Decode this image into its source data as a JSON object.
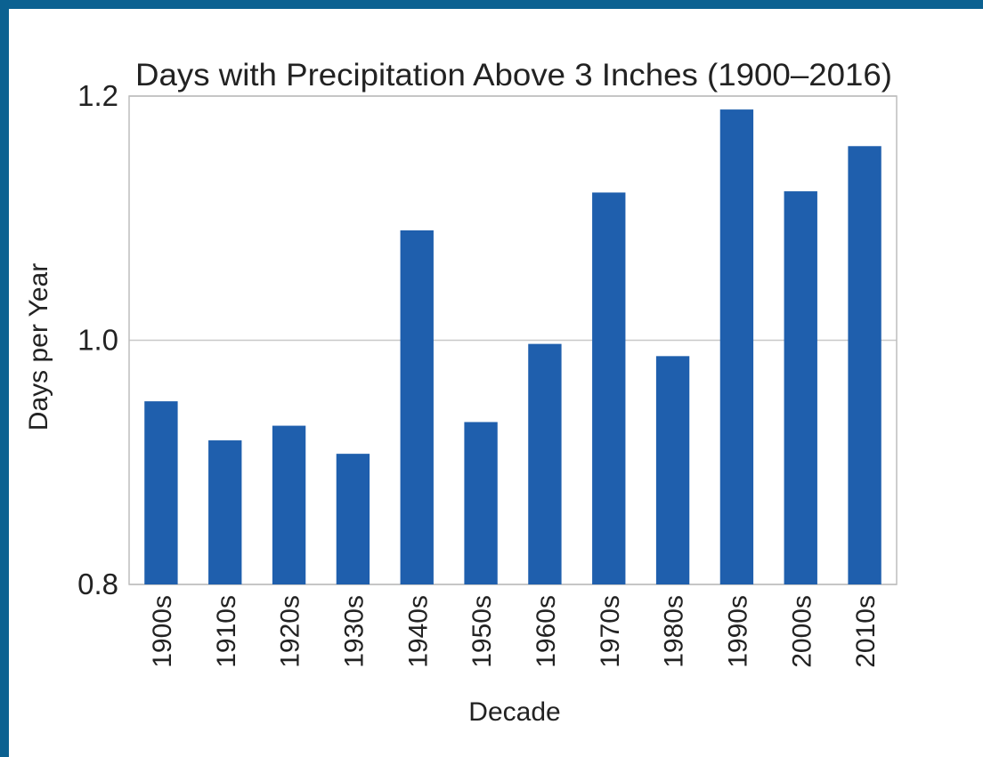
{
  "chart_data": {
    "type": "bar",
    "title": "Days with Precipitation Above 3 Inches (1900–2016)",
    "xlabel": "Decade",
    "ylabel": "Days per Year",
    "categories": [
      "1900s",
      "1910s",
      "1920s",
      "1930s",
      "1940s",
      "1950s",
      "1960s",
      "1970s",
      "1980s",
      "1990s",
      "2000s",
      "2010s"
    ],
    "values": [
      0.95,
      0.918,
      0.93,
      0.907,
      1.09,
      0.933,
      0.997,
      1.121,
      0.987,
      1.189,
      1.122,
      1.159
    ],
    "ylim": [
      0.8,
      1.2
    ],
    "yticks": [
      "0.8",
      "1.0",
      "1.2"
    ],
    "grid": true,
    "colors": {
      "bar": "#1f5fad",
      "grid": "#c8c8c8",
      "frame": "#0b6191"
    }
  }
}
